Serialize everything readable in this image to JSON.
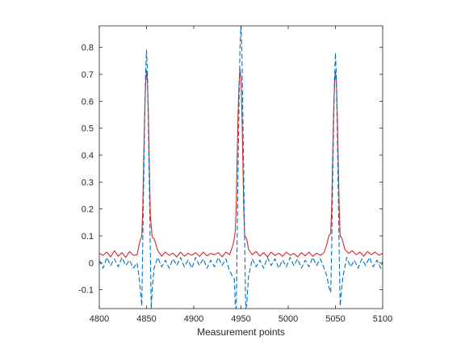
{
  "chart_data": {
    "type": "line",
    "title": "",
    "xlabel": "Measurement points",
    "ylabel": "",
    "xlim": [
      4800,
      5100
    ],
    "ylim": [
      -0.17,
      0.88
    ],
    "xticks": [
      4800,
      4850,
      4900,
      4950,
      5000,
      5050,
      5100
    ],
    "yticks": [
      -0.1,
      0,
      0.1,
      0.2,
      0.3,
      0.4,
      0.5,
      0.6,
      0.7,
      0.8
    ],
    "xtick_labels": [
      "4800",
      "4850",
      "4900",
      "4950",
      "5000",
      "5050",
      "5100"
    ],
    "ytick_labels": [
      "-0.1",
      "0",
      "0.1",
      "0.2",
      "0.3",
      "0.4",
      "0.5",
      "0.6",
      "0.7",
      "0.8"
    ],
    "grid": false,
    "legend": "none",
    "series": [
      {
        "color": "#d62728",
        "style": "solid",
        "x": [
          4800,
          4804,
          4808,
          4812,
          4816,
          4820,
          4824,
          4828,
          4832,
          4836,
          4840,
          4843,
          4845,
          4846,
          4847,
          4848,
          4849,
          4850,
          4851,
          4852,
          4853,
          4854,
          4856,
          4858,
          4862,
          4866,
          4870,
          4874,
          4878,
          4882,
          4886,
          4890,
          4894,
          4898,
          4902,
          4906,
          4910,
          4914,
          4918,
          4922,
          4926,
          4930,
          4934,
          4938,
          4941,
          4943,
          4944,
          4945,
          4946,
          4947,
          4948,
          4949,
          4950,
          4951,
          4952,
          4953,
          4954,
          4956,
          4958,
          4962,
          4966,
          4970,
          4974,
          4978,
          4982,
          4986,
          4990,
          4994,
          4998,
          5002,
          5006,
          5010,
          5014,
          5018,
          5022,
          5026,
          5030,
          5034,
          5038,
          5041,
          5043,
          5045,
          5046,
          5047,
          5048,
          5049,
          5050,
          5051,
          5052,
          5053,
          5054,
          5055,
          5057,
          5060,
          5064,
          5068,
          5072,
          5076,
          5080,
          5084,
          5088,
          5092,
          5096,
          5100
        ],
        "y": [
          0.035,
          0.028,
          0.04,
          0.022,
          0.045,
          0.025,
          0.038,
          0.02,
          0.042,
          0.028,
          0.03,
          0.08,
          0.1,
          0.2,
          0.38,
          0.55,
          0.66,
          0.715,
          0.67,
          0.55,
          0.36,
          0.18,
          0.095,
          0.09,
          0.045,
          0.025,
          0.04,
          0.028,
          0.036,
          0.022,
          0.04,
          0.025,
          0.035,
          0.028,
          0.038,
          0.024,
          0.04,
          0.026,
          0.035,
          0.03,
          0.038,
          0.022,
          0.04,
          0.03,
          0.06,
          0.09,
          0.12,
          0.22,
          0.4,
          0.56,
          0.67,
          0.72,
          0.68,
          0.56,
          0.38,
          0.19,
          0.1,
          0.09,
          0.05,
          0.03,
          0.042,
          0.025,
          0.038,
          0.022,
          0.04,
          0.027,
          0.036,
          0.024,
          0.04,
          0.028,
          0.035,
          0.022,
          0.038,
          0.026,
          0.04,
          0.024,
          0.036,
          0.028,
          0.038,
          0.07,
          0.1,
          0.11,
          0.2,
          0.38,
          0.55,
          0.66,
          0.71,
          0.67,
          0.55,
          0.37,
          0.2,
          0.1,
          0.09,
          0.05,
          0.035,
          0.045,
          0.03,
          0.04,
          0.025,
          0.042,
          0.03,
          0.04,
          0.028,
          0.035
        ]
      },
      {
        "color": "#0072bd",
        "style": "dashed",
        "x": [
          4800,
          4804,
          4808,
          4812,
          4816,
          4820,
          4824,
          4828,
          4832,
          4836,
          4840,
          4842,
          4844,
          4845,
          4846,
          4847,
          4848,
          4849,
          4850,
          4851,
          4852,
          4853,
          4854,
          4855,
          4856,
          4858,
          4862,
          4866,
          4870,
          4874,
          4878,
          4882,
          4886,
          4890,
          4894,
          4898,
          4902,
          4906,
          4910,
          4914,
          4918,
          4922,
          4926,
          4930,
          4934,
          4938,
          4941,
          4943,
          4944,
          4945,
          4946,
          4947,
          4948,
          4949,
          4950,
          4951,
          4952,
          4953,
          4954,
          4955,
          4956,
          4958,
          4962,
          4966,
          4970,
          4974,
          4978,
          4982,
          4986,
          4990,
          4994,
          4998,
          5002,
          5006,
          5010,
          5014,
          5018,
          5022,
          5026,
          5030,
          5034,
          5038,
          5041,
          5043,
          5045,
          5046,
          5047,
          5048,
          5049,
          5050,
          5051,
          5052,
          5053,
          5054,
          5055,
          5056,
          5058,
          5062,
          5066,
          5070,
          5074,
          5078,
          5082,
          5086,
          5090,
          5094,
          5098,
          5100
        ],
        "y": [
          0.01,
          -0.02,
          0.02,
          -0.01,
          0.015,
          -0.015,
          0.02,
          -0.01,
          0.01,
          -0.02,
          0.0,
          -0.05,
          -0.12,
          -0.16,
          0.08,
          0.3,
          0.52,
          0.7,
          0.79,
          0.7,
          0.5,
          0.28,
          0.05,
          -0.17,
          -0.1,
          -0.02,
          0.02,
          -0.015,
          0.01,
          -0.02,
          0.015,
          -0.01,
          0.02,
          -0.015,
          0.01,
          -0.02,
          0.02,
          -0.01,
          0.015,
          -0.02,
          0.01,
          -0.015,
          0.02,
          -0.01,
          0.015,
          -0.03,
          -0.05,
          -0.06,
          -0.16,
          -0.17,
          0.1,
          0.36,
          0.6,
          0.8,
          0.88,
          0.78,
          0.55,
          0.3,
          0.06,
          -0.17,
          -0.16,
          -0.05,
          0.015,
          -0.015,
          0.01,
          -0.02,
          0.02,
          -0.01,
          0.015,
          -0.02,
          0.01,
          -0.015,
          0.02,
          -0.01,
          0.015,
          -0.02,
          0.01,
          -0.015,
          0.02,
          -0.01,
          0.015,
          -0.02,
          -0.05,
          -0.09,
          -0.11,
          0.05,
          0.28,
          0.5,
          0.68,
          0.78,
          0.69,
          0.48,
          0.26,
          0.04,
          -0.16,
          -0.12,
          -0.05,
          0.02,
          -0.015,
          0.01,
          -0.02,
          0.015,
          -0.01,
          0.02,
          -0.015,
          0.01,
          -0.02,
          0.005
        ]
      }
    ]
  }
}
